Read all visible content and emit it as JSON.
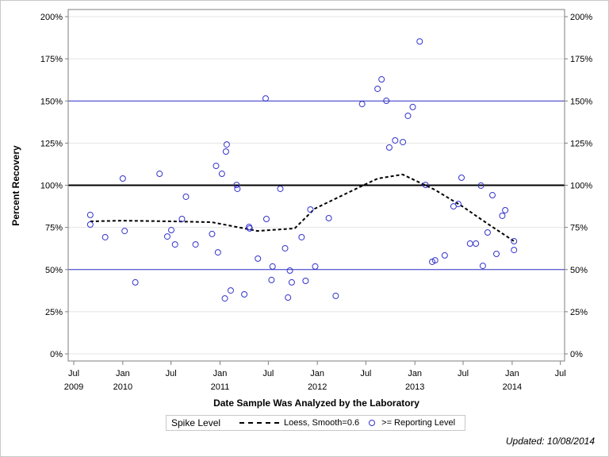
{
  "chart_data": {
    "type": "scatter",
    "title": "",
    "xlabel": "Date Sample Was Analyzed by the Laboratory",
    "ylabel": "Percent Recovery",
    "ylim": [
      0,
      200
    ],
    "xlim": [
      "2009-07-01",
      "2014-07-01"
    ],
    "grid": true,
    "y_ticks": [
      "0%",
      "25%",
      "50%",
      "75%",
      "100%",
      "125%",
      "150%",
      "175%",
      "200%"
    ],
    "y_tick_values": [
      0,
      25,
      50,
      75,
      100,
      125,
      150,
      175,
      200
    ],
    "x_ticks": [
      {
        "date": "2009-07-01",
        "label": "Jul",
        "year": "2009"
      },
      {
        "date": "2010-01-01",
        "label": "Jan",
        "year": "2010"
      },
      {
        "date": "2010-07-01",
        "label": "Jul",
        "year": ""
      },
      {
        "date": "2011-01-01",
        "label": "Jan",
        "year": "2011"
      },
      {
        "date": "2011-07-01",
        "label": "Jul",
        "year": ""
      },
      {
        "date": "2012-01-01",
        "label": "Jan",
        "year": "2012"
      },
      {
        "date": "2012-07-01",
        "label": "Jul",
        "year": ""
      },
      {
        "date": "2013-01-01",
        "label": "Jan",
        "year": "2013"
      },
      {
        "date": "2013-07-01",
        "label": "Jul",
        "year": ""
      },
      {
        "date": "2014-01-01",
        "label": "Jan",
        "year": "2014"
      },
      {
        "date": "2014-07-01",
        "label": "Jul",
        "year": ""
      }
    ],
    "reference_lines": [
      {
        "value": 100,
        "color": "#000000",
        "weight": "thick"
      },
      {
        "value": 150,
        "color": "#3333cc",
        "weight": "thin"
      },
      {
        "value": 50,
        "color": "#3333cc",
        "weight": "thin"
      }
    ],
    "legend_position": "bottom",
    "legend_title": "Spike Level",
    "series": [
      {
        "name": ">= Reporting Level",
        "kind": "scatter",
        "color": "#3333cc",
        "points": [
          [
            "2009-09-01",
            82.4
          ],
          [
            "2009-09-01",
            76.7
          ],
          [
            "2009-10-27",
            69.2
          ],
          [
            "2010-01-01",
            104
          ],
          [
            "2010-01-08",
            72.9
          ],
          [
            "2010-02-17",
            42.4
          ],
          [
            "2010-05-19",
            106.8
          ],
          [
            "2010-06-17",
            69.6
          ],
          [
            "2010-07-02",
            73.4
          ],
          [
            "2010-07-16",
            64.9
          ],
          [
            "2010-08-11",
            80
          ],
          [
            "2010-08-26",
            93.2
          ],
          [
            "2010-10-01",
            64.9
          ],
          [
            "2010-12-02",
            71.1
          ],
          [
            "2010-12-17",
            111.5
          ],
          [
            "2010-12-24",
            60.2
          ],
          [
            "2011-01-08",
            106.8
          ],
          [
            "2011-01-19",
            32.9
          ],
          [
            "2011-01-23",
            120
          ],
          [
            "2011-01-26",
            124.2
          ],
          [
            "2011-02-10",
            37.6
          ],
          [
            "2011-03-04",
            100.2
          ],
          [
            "2011-03-07",
            97.9
          ],
          [
            "2011-04-02",
            35.3
          ],
          [
            "2011-04-20",
            75.3
          ],
          [
            "2011-04-22",
            74.4
          ],
          [
            "2011-05-23",
            56.5
          ],
          [
            "2011-06-21",
            151.5
          ],
          [
            "2011-06-24",
            80
          ],
          [
            "2011-07-13",
            43.8
          ],
          [
            "2011-07-17",
            51.8
          ],
          [
            "2011-08-15",
            97.9
          ],
          [
            "2011-09-02",
            62.6
          ],
          [
            "2011-09-13",
            33.4
          ],
          [
            "2011-09-20",
            49.4
          ],
          [
            "2011-09-27",
            42.4
          ],
          [
            "2011-11-03",
            69.2
          ],
          [
            "2011-11-18",
            43.3
          ],
          [
            "2011-12-06",
            85.6
          ],
          [
            "2011-12-24",
            51.8
          ],
          [
            "2012-02-13",
            80.5
          ],
          [
            "2012-03-10",
            34.4
          ],
          [
            "2012-06-17",
            148.2
          ],
          [
            "2012-08-14",
            157.2
          ],
          [
            "2012-08-29",
            162.8
          ],
          [
            "2012-09-16",
            150.1
          ],
          [
            "2012-09-27",
            122.4
          ],
          [
            "2012-10-19",
            126.6
          ],
          [
            "2012-11-17",
            125.6
          ],
          [
            "2012-12-06",
            141.2
          ],
          [
            "2012-12-24",
            146.4
          ],
          [
            "2013-01-19",
            185.3
          ],
          [
            "2013-02-10",
            100.2
          ],
          [
            "2013-03-07",
            54.6
          ],
          [
            "2013-03-18",
            55.5
          ],
          [
            "2013-04-23",
            58.4
          ],
          [
            "2013-05-26",
            87.5
          ],
          [
            "2013-06-13",
            88.9
          ],
          [
            "2013-06-25",
            104.5
          ],
          [
            "2013-07-27",
            65.4
          ],
          [
            "2013-08-18",
            65.4
          ],
          [
            "2013-09-06",
            99.8
          ],
          [
            "2013-09-13",
            52.2
          ],
          [
            "2013-10-01",
            72
          ],
          [
            "2013-10-19",
            94.1
          ],
          [
            "2013-11-03",
            59.3
          ],
          [
            "2013-11-25",
            81.9
          ],
          [
            "2013-12-06",
            85.2
          ],
          [
            "2014-01-08",
            66.8
          ],
          [
            "2014-01-08",
            61.6
          ]
        ]
      },
      {
        "name": "Loess, Smooth=0.6",
        "kind": "line",
        "color": "#000000",
        "dash": true,
        "points": [
          [
            "2009-09-01",
            78.6
          ],
          [
            "2010-01-01",
            79
          ],
          [
            "2010-07-02",
            78.6
          ],
          [
            "2010-12-01",
            78.1
          ],
          [
            "2011-05-21",
            72.9
          ],
          [
            "2011-10-08",
            74.4
          ],
          [
            "2011-12-22",
            86.1
          ],
          [
            "2012-07-01",
            100.7
          ],
          [
            "2012-08-15",
            104
          ],
          [
            "2012-11-16",
            106.4
          ],
          [
            "2013-03-16",
            97.4
          ],
          [
            "2013-06-28",
            87.5
          ],
          [
            "2013-09-27",
            77.6
          ],
          [
            "2014-01-08",
            66.8
          ]
        ]
      }
    ]
  },
  "legend": {
    "title": "Spike Level",
    "loess_label": "Loess, Smooth=0.6",
    "points_label": ">= Reporting Level"
  },
  "footer": {
    "updated": "Updated: 10/08/2014"
  }
}
